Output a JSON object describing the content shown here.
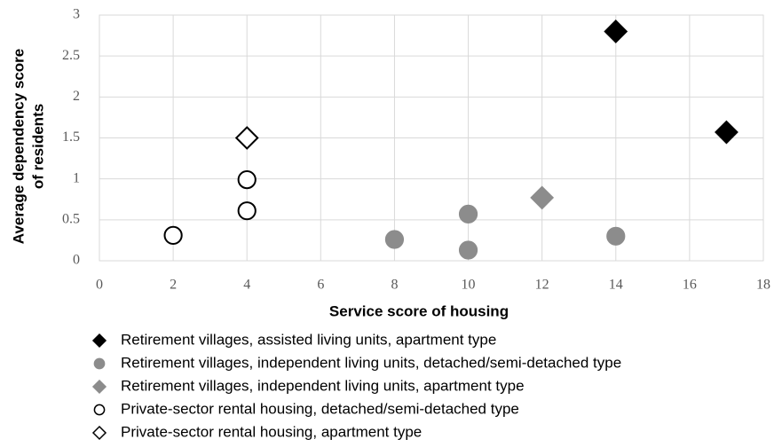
{
  "chart_data": {
    "type": "scatter",
    "xlabel": "Service score of housing",
    "ylabel": [
      "Average dependency score",
      "of residents"
    ],
    "xlim": [
      0,
      18
    ],
    "xticks": [
      0,
      2,
      4,
      6,
      8,
      10,
      12,
      14,
      16,
      18
    ],
    "ylim": [
      0,
      3
    ],
    "yticks": [
      0,
      0.5,
      1,
      1.5,
      2,
      2.5,
      3
    ],
    "grid": true,
    "legend": "bottom",
    "series": [
      {
        "name": "Retirement villages, assisted living units, apartment type",
        "marker": "diamond",
        "color": "#000000",
        "filled": true,
        "x": [
          14,
          17
        ],
        "values": [
          2.8,
          1.57
        ]
      },
      {
        "name": "Retirement villages, independent living units, detached/semi-detached type",
        "marker": "circle",
        "color": "#8c8c8c",
        "filled": true,
        "x": [
          8,
          10,
          10,
          14
        ],
        "values": [
          0.26,
          0.13,
          0.57,
          0.3
        ]
      },
      {
        "name": "Retirement villages, independent living units, apartment type",
        "marker": "diamond",
        "color": "#8c8c8c",
        "filled": true,
        "x": [
          12
        ],
        "values": [
          0.77
        ]
      },
      {
        "name": "Private-sector rental housing, detached/semi-detached type",
        "marker": "circle",
        "color": "#000000",
        "filled": false,
        "x": [
          2,
          4,
          4
        ],
        "values": [
          0.31,
          0.61,
          0.99
        ]
      },
      {
        "name": "Private-sector rental housing, apartment type",
        "marker": "diamond",
        "color": "#000000",
        "filled": false,
        "x": [
          4
        ],
        "values": [
          1.5
        ]
      }
    ]
  }
}
